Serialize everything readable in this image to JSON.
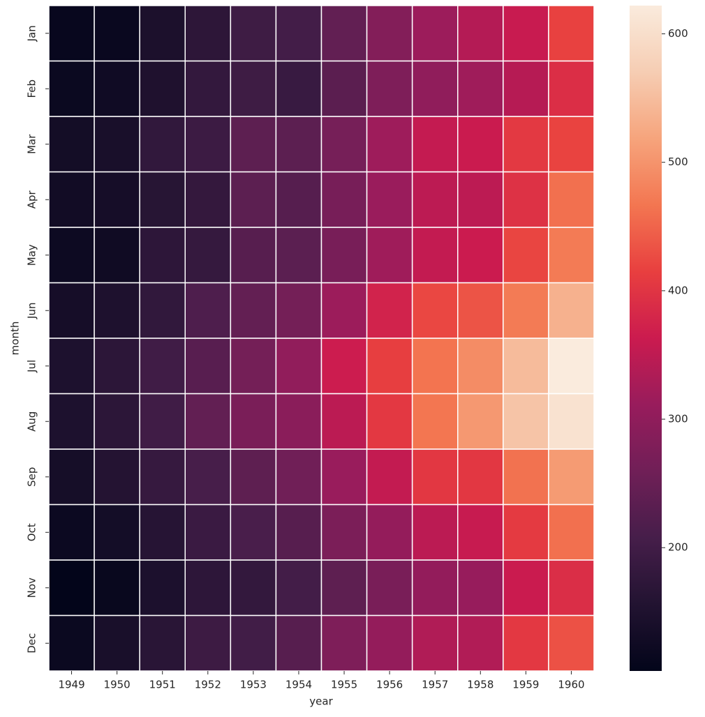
{
  "chart_data": {
    "type": "heatmap",
    "x_label": "year",
    "y_label": "month",
    "x_categories": [
      "1949",
      "1950",
      "1951",
      "1952",
      "1953",
      "1954",
      "1955",
      "1956",
      "1957",
      "1958",
      "1959",
      "1960"
    ],
    "y_categories": [
      "Jan",
      "Feb",
      "Mar",
      "Apr",
      "May",
      "Jun",
      "Jul",
      "Aug",
      "Sep",
      "Oct",
      "Nov",
      "Dec"
    ],
    "values": [
      [
        112,
        115,
        145,
        171,
        196,
        204,
        242,
        284,
        315,
        340,
        360,
        417
      ],
      [
        118,
        126,
        150,
        180,
        196,
        188,
        233,
        277,
        301,
        318,
        342,
        391
      ],
      [
        132,
        141,
        178,
        193,
        236,
        235,
        267,
        317,
        356,
        362,
        406,
        419
      ],
      [
        129,
        135,
        163,
        181,
        235,
        227,
        269,
        313,
        348,
        348,
        396,
        461
      ],
      [
        121,
        125,
        172,
        183,
        229,
        234,
        270,
        318,
        355,
        363,
        420,
        472
      ],
      [
        135,
        149,
        178,
        218,
        243,
        264,
        315,
        374,
        422,
        435,
        472,
        535
      ],
      [
        148,
        170,
        199,
        230,
        264,
        302,
        364,
        413,
        465,
        491,
        548,
        622
      ],
      [
        148,
        170,
        199,
        242,
        272,
        293,
        347,
        405,
        467,
        505,
        559,
        606
      ],
      [
        136,
        158,
        184,
        209,
        237,
        259,
        312,
        355,
        404,
        404,
        463,
        508
      ],
      [
        119,
        133,
        162,
        191,
        211,
        229,
        274,
        306,
        347,
        359,
        407,
        461
      ],
      [
        104,
        114,
        146,
        172,
        180,
        203,
        237,
        271,
        305,
        310,
        362,
        390
      ],
      [
        118,
        140,
        166,
        194,
        201,
        229,
        278,
        306,
        336,
        337,
        405,
        432
      ]
    ],
    "colormap": "rocket",
    "clim": [
      104,
      622
    ],
    "cticks": [
      200,
      300,
      400,
      500,
      600
    ]
  }
}
